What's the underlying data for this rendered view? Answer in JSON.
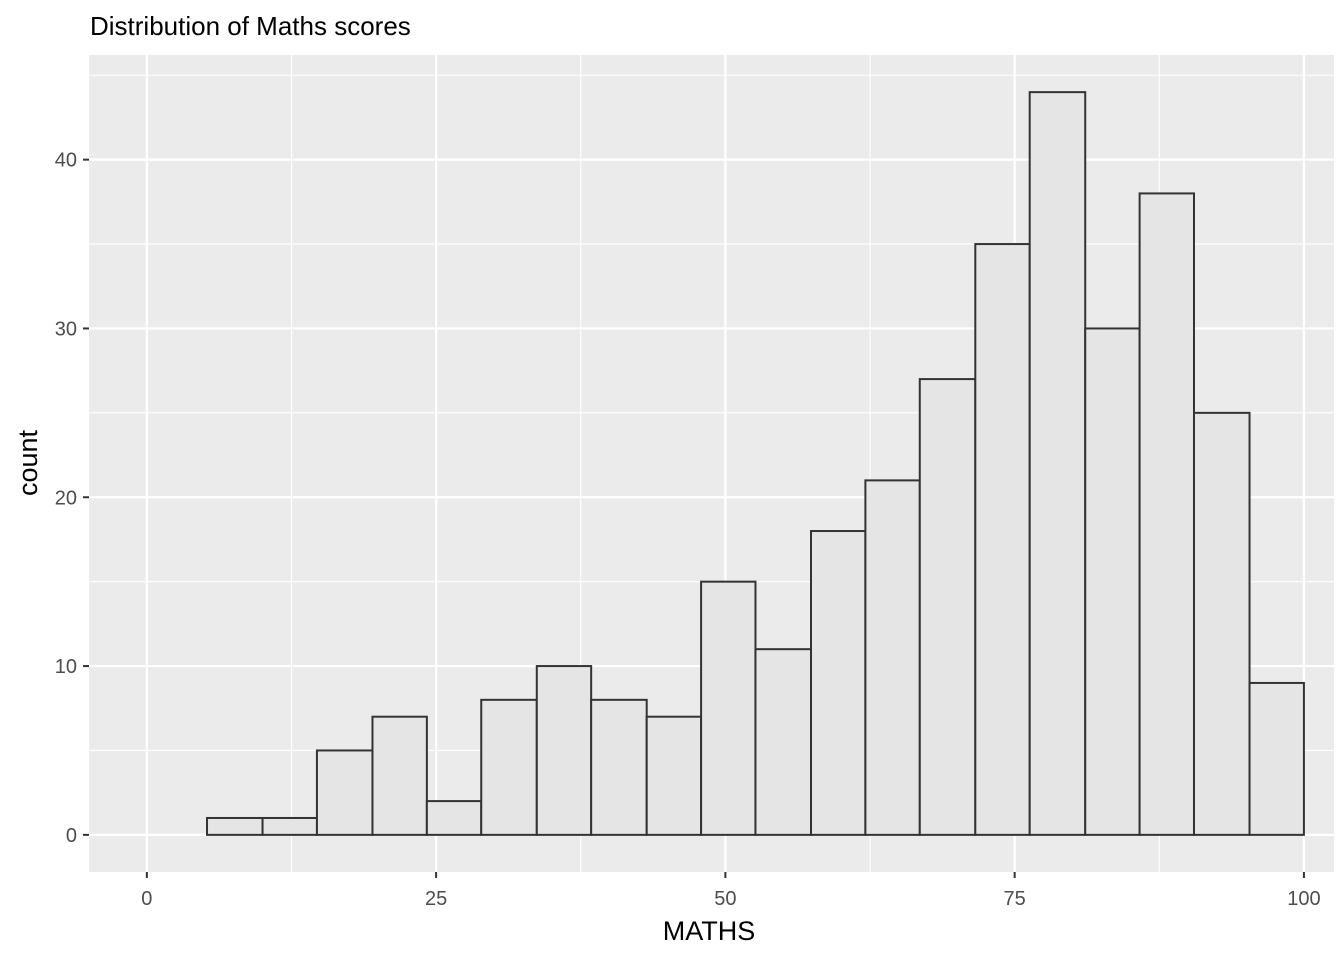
{
  "chart_data": {
    "type": "bar",
    "title": "Distribution of Maths scores",
    "xlabel": "MATHS",
    "ylabel": "count",
    "x_ticks": [
      "0",
      "25",
      "50",
      "75",
      "100"
    ],
    "x_tick_values": [
      0,
      25,
      50,
      75,
      100
    ],
    "y_ticks": [
      "0",
      "10",
      "20",
      "30",
      "40"
    ],
    "y_tick_values": [
      0,
      10,
      20,
      30,
      40
    ],
    "xlim": [
      -5,
      102.6
    ],
    "ylim": [
      -2.2,
      46.2
    ],
    "bins": [
      {
        "start": 5.2,
        "end": 10.0,
        "count": 1
      },
      {
        "start": 10.0,
        "end": 14.7,
        "count": 1
      },
      {
        "start": 14.7,
        "end": 19.5,
        "count": 5
      },
      {
        "start": 19.5,
        "end": 24.2,
        "count": 7
      },
      {
        "start": 24.2,
        "end": 28.9,
        "count": 2
      },
      {
        "start": 28.9,
        "end": 33.7,
        "count": 8
      },
      {
        "start": 33.7,
        "end": 38.4,
        "count": 10
      },
      {
        "start": 38.4,
        "end": 43.2,
        "count": 8
      },
      {
        "start": 43.2,
        "end": 47.9,
        "count": 7
      },
      {
        "start": 47.9,
        "end": 52.6,
        "count": 15
      },
      {
        "start": 52.6,
        "end": 57.4,
        "count": 11
      },
      {
        "start": 57.4,
        "end": 62.1,
        "count": 18
      },
      {
        "start": 62.1,
        "end": 66.8,
        "count": 21
      },
      {
        "start": 66.8,
        "end": 71.6,
        "count": 27
      },
      {
        "start": 71.6,
        "end": 76.3,
        "count": 35
      },
      {
        "start": 76.3,
        "end": 81.1,
        "count": 44
      },
      {
        "start": 81.1,
        "end": 85.8,
        "count": 30
      },
      {
        "start": 85.8,
        "end": 90.5,
        "count": 38
      },
      {
        "start": 90.5,
        "end": 95.3,
        "count": 25
      },
      {
        "start": 95.3,
        "end": 100.0,
        "count": 9
      }
    ],
    "grid": true,
    "colors": {
      "panel": "#ebebeb",
      "grid": "#ffffff",
      "bar_fill": "#e5e5e5",
      "bar_stroke": "#333333",
      "tick": "#333333"
    }
  }
}
